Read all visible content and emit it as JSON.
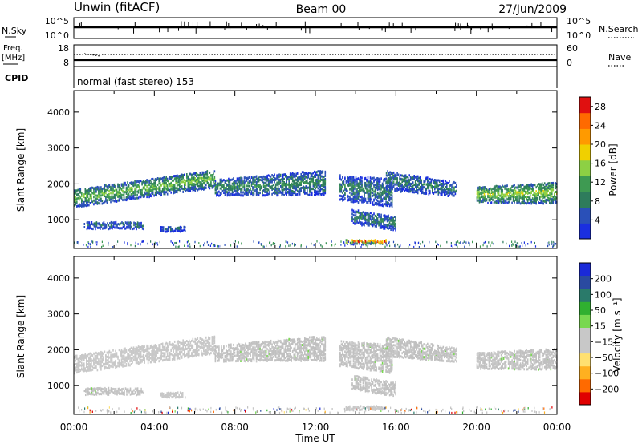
{
  "header": {
    "station": "Unwin (fitACF)",
    "beam": "Beam 00",
    "date": "27/Jun/2009"
  },
  "top_panels": {
    "nsky": {
      "label": "N.Sky",
      "ticks": [
        "10^5",
        "10^0"
      ]
    },
    "nsearch": {
      "label": "N.Search",
      "ticks": [
        "10^5",
        "10^0"
      ]
    },
    "freq": {
      "label": "Freq.",
      "unit": "[MHz]",
      "ticks": [
        "18",
        "8"
      ]
    },
    "nave": {
      "label": "Nave",
      "ticks": [
        "60",
        "0"
      ]
    },
    "cpid": {
      "label": "CPID",
      "mode_text": "normal (fast stereo) 153"
    }
  },
  "colors": {
    "power": [
      "#1a2fe0",
      "#2a50b8",
      "#2e7c5c",
      "#3e9a52",
      "#8dd044",
      "#f0d000",
      "#ff9a00",
      "#ff6a00",
      "#e01010"
    ],
    "velocity": [
      "#e00000",
      "#ff6a00",
      "#ffb020",
      "#ffe070",
      "#c8c8c8",
      "#c8c8c8",
      "#78d850",
      "#30b030",
      "#2a7a6a",
      "#2a4aa0",
      "#1a2ad8"
    ],
    "ground_scatter": "#c0c0c0"
  },
  "chart_data": [
    {
      "type": "heatmap",
      "title": "Power",
      "ylabel": "Slant Range [km]",
      "xlabel": "Time UT",
      "xticks": [
        "00:00",
        "04:00",
        "08:00",
        "12:00",
        "16:00",
        "20:00",
        "00:00"
      ],
      "yticks": [
        "1000",
        "2000",
        "3000",
        "4000"
      ],
      "ylim": [
        200,
        4600
      ],
      "xlim_hours": [
        0,
        24
      ],
      "colorbar": {
        "label": "Power [dB]",
        "ticks": [
          "4",
          "8",
          "12",
          "16",
          "20",
          "24",
          "28"
        ],
        "range": [
          0,
          30
        ]
      },
      "bands": [
        {
          "t": [
            0.0,
            7.0
          ],
          "center": [
            1600,
            2150
          ],
          "width": [
            500,
            500
          ],
          "peak": 14
        },
        {
          "t": [
            7.0,
            12.5
          ],
          "center": [
            1900,
            2050
          ],
          "width": [
            450,
            700
          ],
          "peak": 10
        },
        {
          "t": [
            13.2,
            15.8
          ],
          "center": [
            1900,
            1750
          ],
          "width": [
            700,
            800
          ],
          "peak": 9
        },
        {
          "t": [
            15.5,
            19.0
          ],
          "center": [
            2100,
            1850
          ],
          "width": [
            550,
            400
          ],
          "peak": 9
        },
        {
          "t": [
            20.0,
            24.0
          ],
          "center": [
            1700,
            1750
          ],
          "width": [
            450,
            600
          ],
          "peak": 16
        },
        {
          "t": [
            0.5,
            3.5
          ],
          "center": [
            850,
            850
          ],
          "width": [
            200,
            200
          ],
          "peak": 8
        },
        {
          "t": [
            4.3,
            5.5
          ],
          "center": [
            750,
            750
          ],
          "width": [
            150,
            150
          ],
          "peak": 7
        },
        {
          "t": [
            13.8,
            16.0
          ],
          "center": [
            1100,
            900
          ],
          "width": [
            400,
            400
          ],
          "peak": 9
        },
        {
          "t": [
            13.5,
            15.5
          ],
          "center": [
            380,
            380
          ],
          "width": [
            120,
            120
          ],
          "peak": 28
        }
      ]
    },
    {
      "type": "heatmap",
      "title": "Velocity",
      "ylabel": "Slant Range [km]",
      "xlabel": "Time UT",
      "xticks": [
        "00:00",
        "04:00",
        "08:00",
        "12:00",
        "16:00",
        "20:00",
        "00:00"
      ],
      "yticks": [
        "1000",
        "2000",
        "3000",
        "4000"
      ],
      "ylim": [
        200,
        4600
      ],
      "xlim_hours": [
        0,
        24
      ],
      "colorbar": {
        "label": "Velocity [m s⁻¹]",
        "ticks": [
          "200",
          "100",
          "50",
          "15",
          "−15",
          "−50",
          "−100",
          "−200"
        ],
        "range": [
          -250,
          250
        ]
      },
      "bands": [
        {
          "t": [
            0.0,
            7.0
          ],
          "center": [
            1600,
            2150
          ],
          "width": [
            500,
            500
          ],
          "vel": -20
        },
        {
          "t": [
            7.0,
            12.5
          ],
          "center": [
            1900,
            2050
          ],
          "width": [
            450,
            700
          ],
          "vel": 0
        },
        {
          "t": [
            13.2,
            15.8
          ],
          "center": [
            1900,
            1750
          ],
          "width": [
            700,
            800
          ],
          "vel": 0
        },
        {
          "t": [
            15.5,
            19.0
          ],
          "center": [
            2100,
            1850
          ],
          "width": [
            550,
            400
          ],
          "vel": 0
        },
        {
          "t": [
            20.0,
            24.0
          ],
          "center": [
            1700,
            1750
          ],
          "width": [
            450,
            600
          ],
          "vel": 0
        },
        {
          "t": [
            0.5,
            3.5
          ],
          "center": [
            850,
            850
          ],
          "width": [
            200,
            200
          ],
          "vel": 0
        },
        {
          "t": [
            4.3,
            5.5
          ],
          "center": [
            750,
            750
          ],
          "width": [
            150,
            150
          ],
          "vel": -40
        },
        {
          "t": [
            13.8,
            16.0
          ],
          "center": [
            1100,
            900
          ],
          "width": [
            400,
            400
          ],
          "vel": 0
        },
        {
          "t": [
            13.5,
            15.5
          ],
          "center": [
            380,
            380
          ],
          "width": [
            120,
            120
          ],
          "vel": -40
        }
      ]
    }
  ]
}
